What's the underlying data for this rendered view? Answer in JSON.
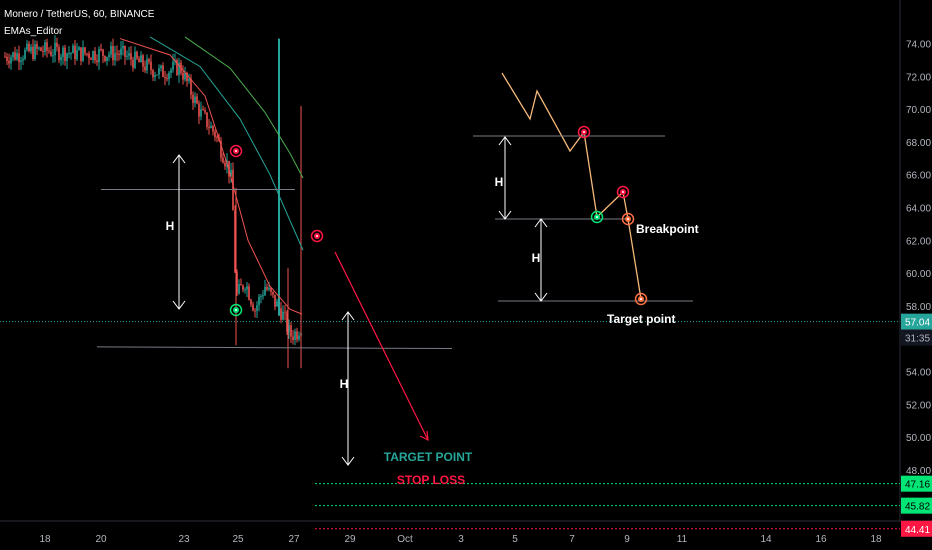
{
  "header": {
    "symbol_line": "Monero / TetherUS, 60, BINANCE",
    "indicator_line": "EMAs_Editor"
  },
  "chart_data": {
    "type": "line",
    "y_axis": {
      "ticks": [
        74.0,
        72.0,
        70.0,
        68.0,
        66.0,
        64.0,
        62.0,
        60.0,
        58.0,
        56.0,
        54.0,
        52.0,
        50.0,
        48.0,
        46.0
      ],
      "tick_labels": [
        "74.00",
        "72.00",
        "70.00",
        "68.00",
        "66.00",
        "64.00",
        "62.00",
        "60.00",
        "58.00",
        "56.00",
        "54.00",
        "52.00",
        "50.00",
        "48.00",
        "46.00"
      ],
      "range": [
        43.5,
        74.4
      ]
    },
    "x_axis": {
      "tick_labels": [
        "18",
        "20",
        "23",
        "25",
        "27",
        "29",
        "Oct",
        "3",
        "5",
        "7",
        "9",
        "11",
        "14",
        "16",
        "18"
      ]
    },
    "price_labels": {
      "current": {
        "value": 57.04,
        "text": "57.04",
        "color": "#26a69a"
      },
      "countdown": "31:35",
      "target_1": {
        "value": 47.16,
        "text": "47.16",
        "color": "#00e676"
      },
      "target_2": {
        "value": 45.82,
        "text": "45.82",
        "color": "#00e676"
      },
      "stop": {
        "value": 44.41,
        "text": "44.41",
        "color": "#ff1744"
      }
    },
    "annotations": {
      "h_label": "H",
      "target_point_caps": "TARGET POINT",
      "stop_loss": "STOP LOSS",
      "breakpoint": "Breakpoint",
      "target_point": "Target point"
    },
    "colors": {
      "up": "#26a69a",
      "down": "#ef5350",
      "ema_fast": "#ef5350",
      "ema_mid": "#26a69a",
      "ema_slow": "#4caf50",
      "arrow": "#ff1744",
      "schematic": "#f5b97a",
      "green_line": "#00e676",
      "red_line": "#ff1744",
      "guide_line": "#787b86"
    }
  }
}
